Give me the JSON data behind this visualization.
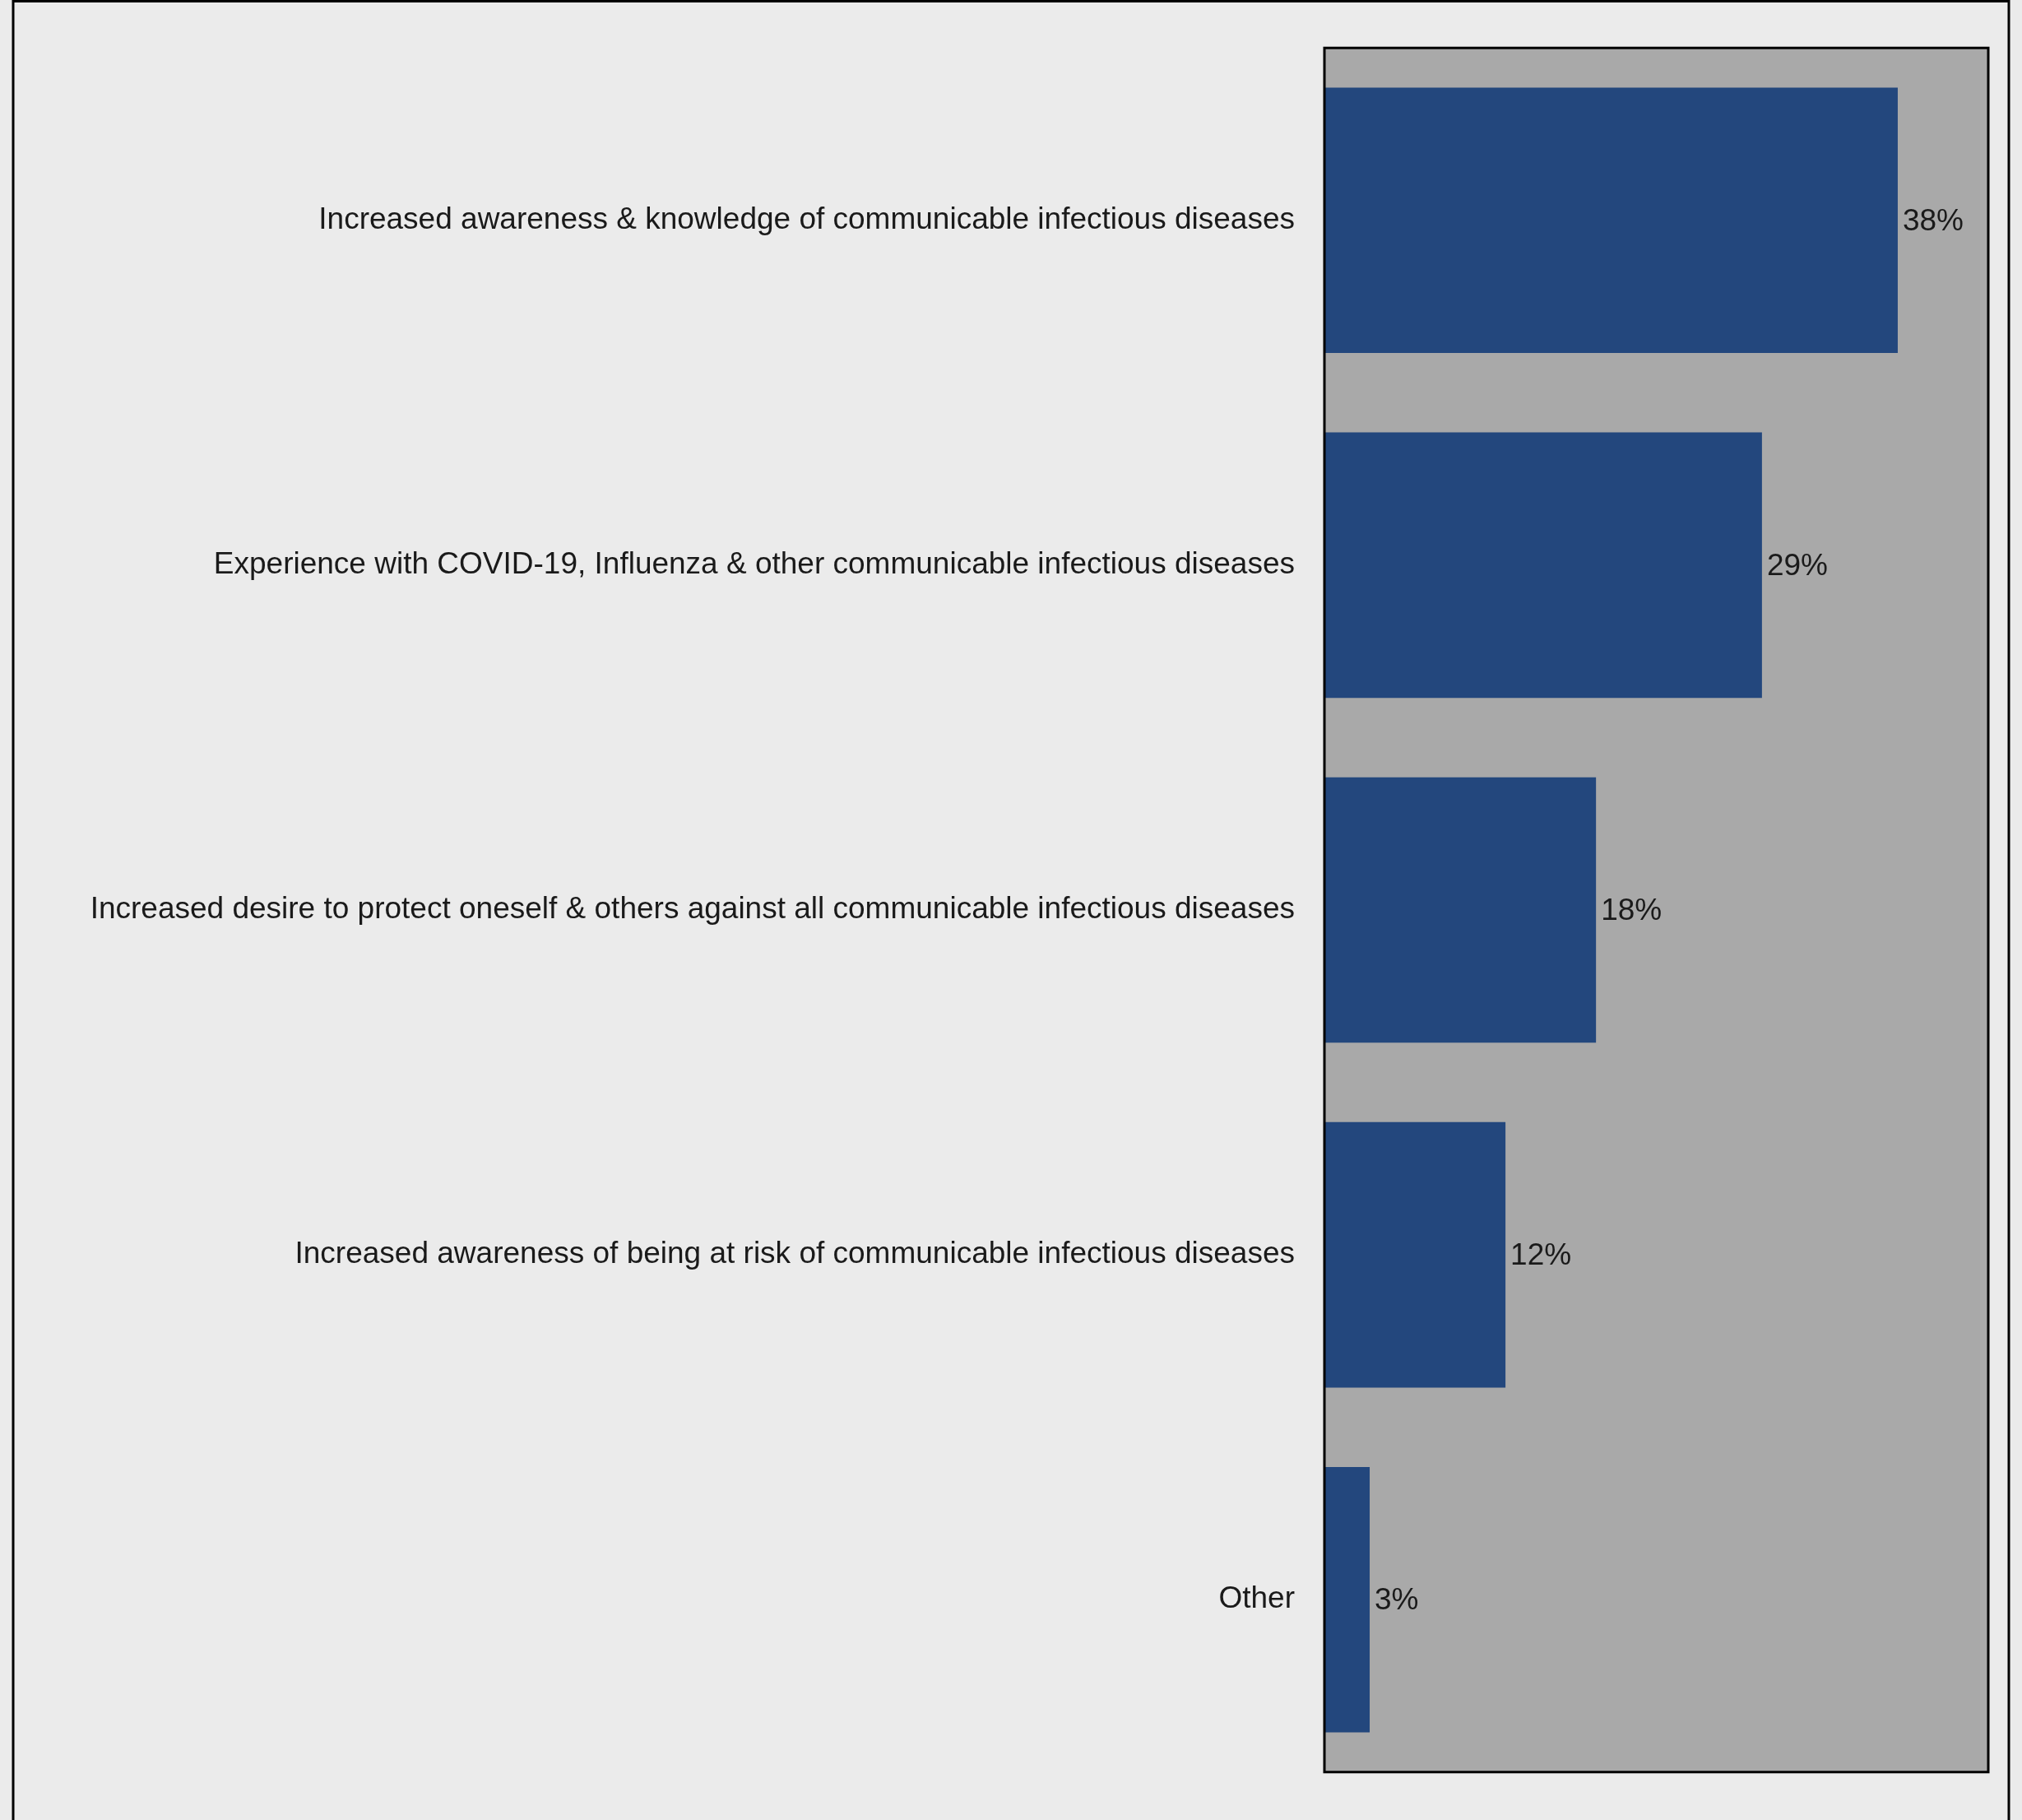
{
  "chart_data": {
    "type": "bar",
    "orientation": "horizontal",
    "categories": [
      "Increased awareness & knowledge of communicable infectious diseases",
      "Experience with COVID-19, Influenza & other communicable infectious diseases",
      "Increased desire to protect oneself & others against all communicable infectious diseases",
      "Increased awareness of being at risk of communicable infectious diseases",
      "Other"
    ],
    "values": [
      38,
      29,
      18,
      12,
      3
    ],
    "value_labels": [
      "38%",
      "29%",
      "18%",
      "12%",
      "3%"
    ],
    "color": "#23477d",
    "xlim": [
      0,
      44
    ],
    "tick_labels": "y",
    "legend": false
  }
}
